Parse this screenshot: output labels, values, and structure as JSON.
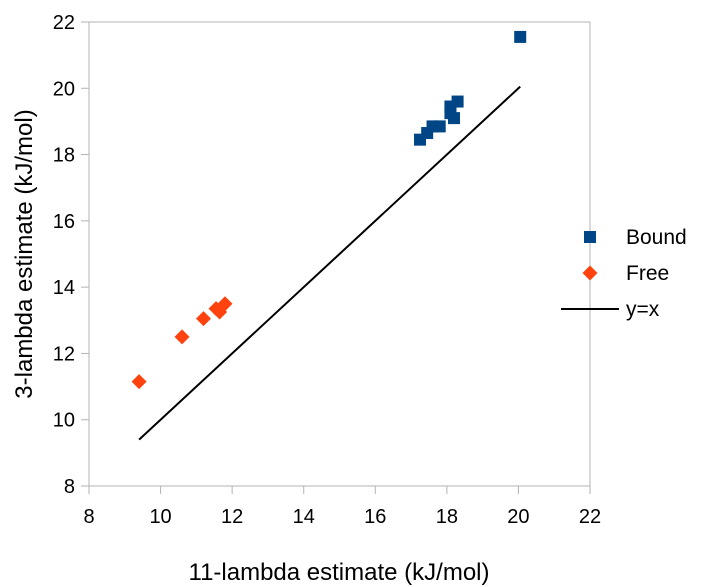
{
  "chart_data": {
    "type": "scatter",
    "title": "",
    "xlabel": "11-lambda estimate (kJ/mol)",
    "ylabel": "3-lambda estimate (kJ/mol)",
    "xlim": [
      8,
      22
    ],
    "ylim": [
      8,
      22
    ],
    "x_ticks": [
      "8",
      "10",
      "12",
      "14",
      "16",
      "18",
      "20",
      "22"
    ],
    "y_ticks": [
      "8",
      "10",
      "12",
      "14",
      "16",
      "18",
      "20",
      "22"
    ],
    "grid": false,
    "legend_position": "right",
    "series": [
      {
        "name": "Bound",
        "marker": "square",
        "color": "#004586",
        "points": [
          {
            "x": 17.25,
            "y": 18.45
          },
          {
            "x": 17.45,
            "y": 18.65
          },
          {
            "x": 17.6,
            "y": 18.85
          },
          {
            "x": 17.8,
            "y": 18.85
          },
          {
            "x": 18.1,
            "y": 19.25
          },
          {
            "x": 18.1,
            "y": 19.45
          },
          {
            "x": 18.2,
            "y": 19.1
          },
          {
            "x": 18.3,
            "y": 19.6
          },
          {
            "x": 20.05,
            "y": 21.55
          }
        ]
      },
      {
        "name": "Free",
        "marker": "diamond",
        "color": "#ff420e",
        "points": [
          {
            "x": 9.4,
            "y": 11.15
          },
          {
            "x": 10.6,
            "y": 12.5
          },
          {
            "x": 11.2,
            "y": 13.05
          },
          {
            "x": 11.55,
            "y": 13.35
          },
          {
            "x": 11.65,
            "y": 13.25
          },
          {
            "x": 11.8,
            "y": 13.5
          }
        ]
      },
      {
        "name": "y=x",
        "marker": "line",
        "color": "#000000",
        "points": [
          {
            "x": 9.4,
            "y": 9.4
          },
          {
            "x": 20.05,
            "y": 20.05
          }
        ]
      }
    ]
  }
}
